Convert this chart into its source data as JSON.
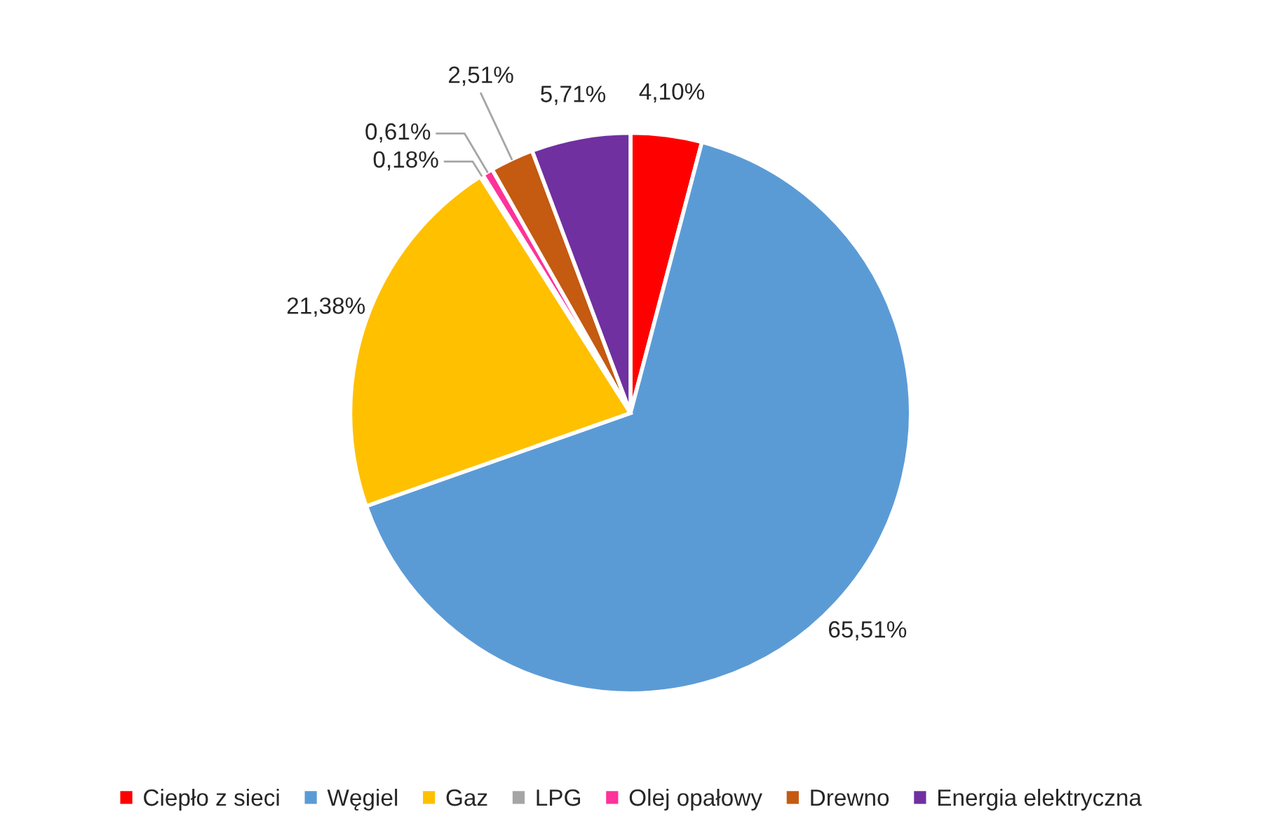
{
  "chart_data": {
    "type": "pie",
    "categories": [
      "Ciepło z sieci",
      "Węgiel",
      "Gaz",
      "LPG",
      "Olej opałowy",
      "Drewno",
      "Energia elektryczna"
    ],
    "values": [
      4.1,
      65.51,
      21.38,
      0.18,
      0.61,
      2.51,
      5.71
    ],
    "colors": [
      "#ff0000",
      "#5b9bd5",
      "#ffc000",
      "#a5a5a5",
      "#ff3399",
      "#c55a11",
      "#7030a0"
    ],
    "value_labels": [
      "4,10%",
      "65,51%",
      "21,38%",
      "0,18%",
      "0,61%",
      "2,51%",
      "5,71%"
    ],
    "legend": "bottom"
  }
}
